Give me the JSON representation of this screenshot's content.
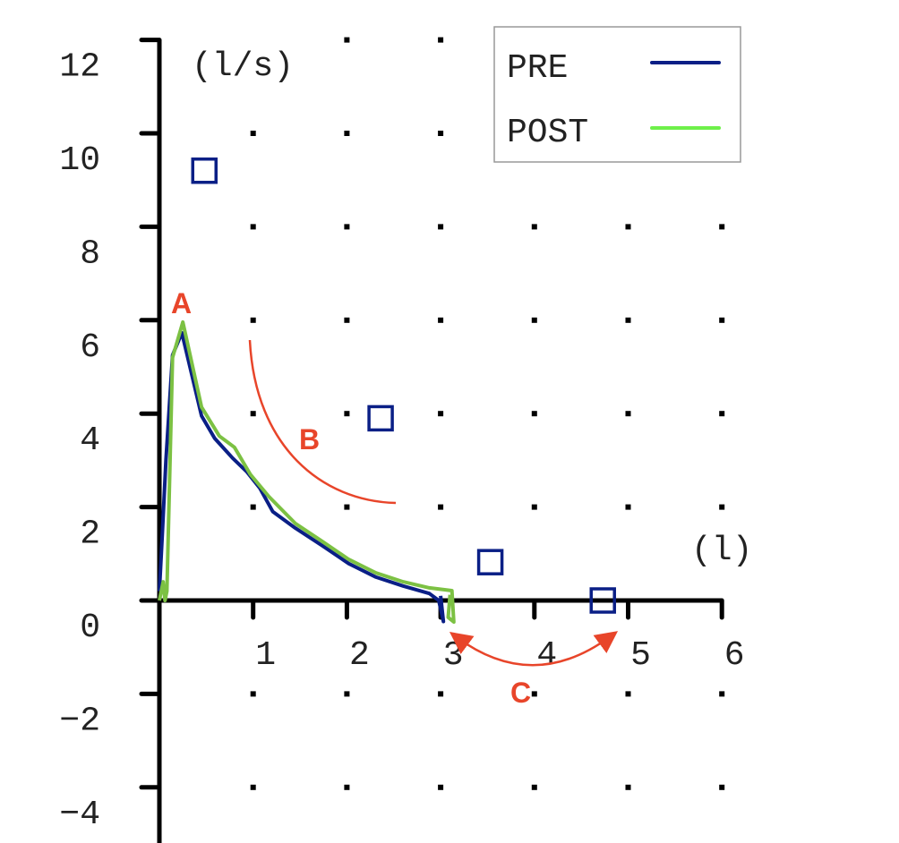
{
  "chart_data": {
    "type": "line",
    "title": "",
    "xlabel": "(l)",
    "ylabel": "(l/s)",
    "xlim": [
      0,
      6
    ],
    "ylim": [
      -4,
      12
    ],
    "x_ticks": [
      1,
      2,
      3,
      4,
      5,
      6
    ],
    "y_ticks": [
      -4,
      -2,
      0,
      2,
      4,
      6,
      8,
      10,
      12
    ],
    "x_tick_labels": [
      "1",
      "2",
      "3",
      "4",
      "5",
      "6"
    ],
    "y_tick_labels": [
      "−4",
      "−2",
      "0",
      "2",
      "4",
      "6",
      "8",
      "10",
      "12"
    ],
    "grid": "dotted points",
    "legend": {
      "placement": "top-right",
      "entries": [
        {
          "name": "PRE",
          "color": "#0a1f86"
        },
        {
          "name": "POST",
          "color": "#6ef04a"
        }
      ]
    },
    "series": [
      {
        "name": "PRE",
        "color": "#0a1f86",
        "points": [
          [
            0.0,
            0.2
          ],
          [
            0.03,
            1.35
          ],
          [
            0.07,
            3.0
          ],
          [
            0.14,
            5.25
          ],
          [
            0.24,
            5.73
          ],
          [
            0.45,
            3.95
          ],
          [
            0.59,
            3.47
          ],
          [
            0.78,
            3.05
          ],
          [
            0.93,
            2.76
          ],
          [
            1.07,
            2.41
          ],
          [
            1.21,
            1.9
          ],
          [
            1.45,
            1.55
          ],
          [
            1.74,
            1.17
          ],
          [
            2.02,
            0.79
          ],
          [
            2.31,
            0.5
          ],
          [
            2.6,
            0.31
          ],
          [
            2.88,
            0.15
          ],
          [
            2.98,
            0.0
          ],
          [
            3.03,
            -0.45
          ],
          [
            3.0,
            0.1
          ]
        ]
      },
      {
        "name": "POST",
        "color": "#7cc143",
        "points": [
          [
            0.0,
            0.0
          ],
          [
            0.04,
            0.4
          ],
          [
            0.06,
            0.0
          ],
          [
            0.08,
            0.2
          ],
          [
            0.14,
            5.2
          ],
          [
            0.25,
            5.96
          ],
          [
            0.45,
            4.14
          ],
          [
            0.64,
            3.52
          ],
          [
            0.8,
            3.28
          ],
          [
            0.97,
            2.7
          ],
          [
            1.17,
            2.22
          ],
          [
            1.45,
            1.65
          ],
          [
            1.74,
            1.26
          ],
          [
            2.02,
            0.88
          ],
          [
            2.31,
            0.59
          ],
          [
            2.6,
            0.4
          ],
          [
            2.88,
            0.27
          ],
          [
            3.12,
            0.21
          ],
          [
            3.14,
            -0.46
          ],
          [
            3.08,
            -0.36
          ],
          [
            3.1,
            0.12
          ]
        ]
      },
      {
        "name": "",
        "type": "scatter",
        "marker": "open-square",
        "color": "#0a1f86",
        "points": [
          [
            0.48,
            9.2
          ],
          [
            2.36,
            3.9
          ],
          [
            3.53,
            0.82
          ],
          [
            4.73,
            0.0
          ]
        ]
      }
    ],
    "annotations": [
      {
        "text": "A",
        "color": "#e8452a"
      },
      {
        "text": "B",
        "color": "#e8452a"
      },
      {
        "text": "C",
        "color": "#e8452a"
      }
    ]
  }
}
